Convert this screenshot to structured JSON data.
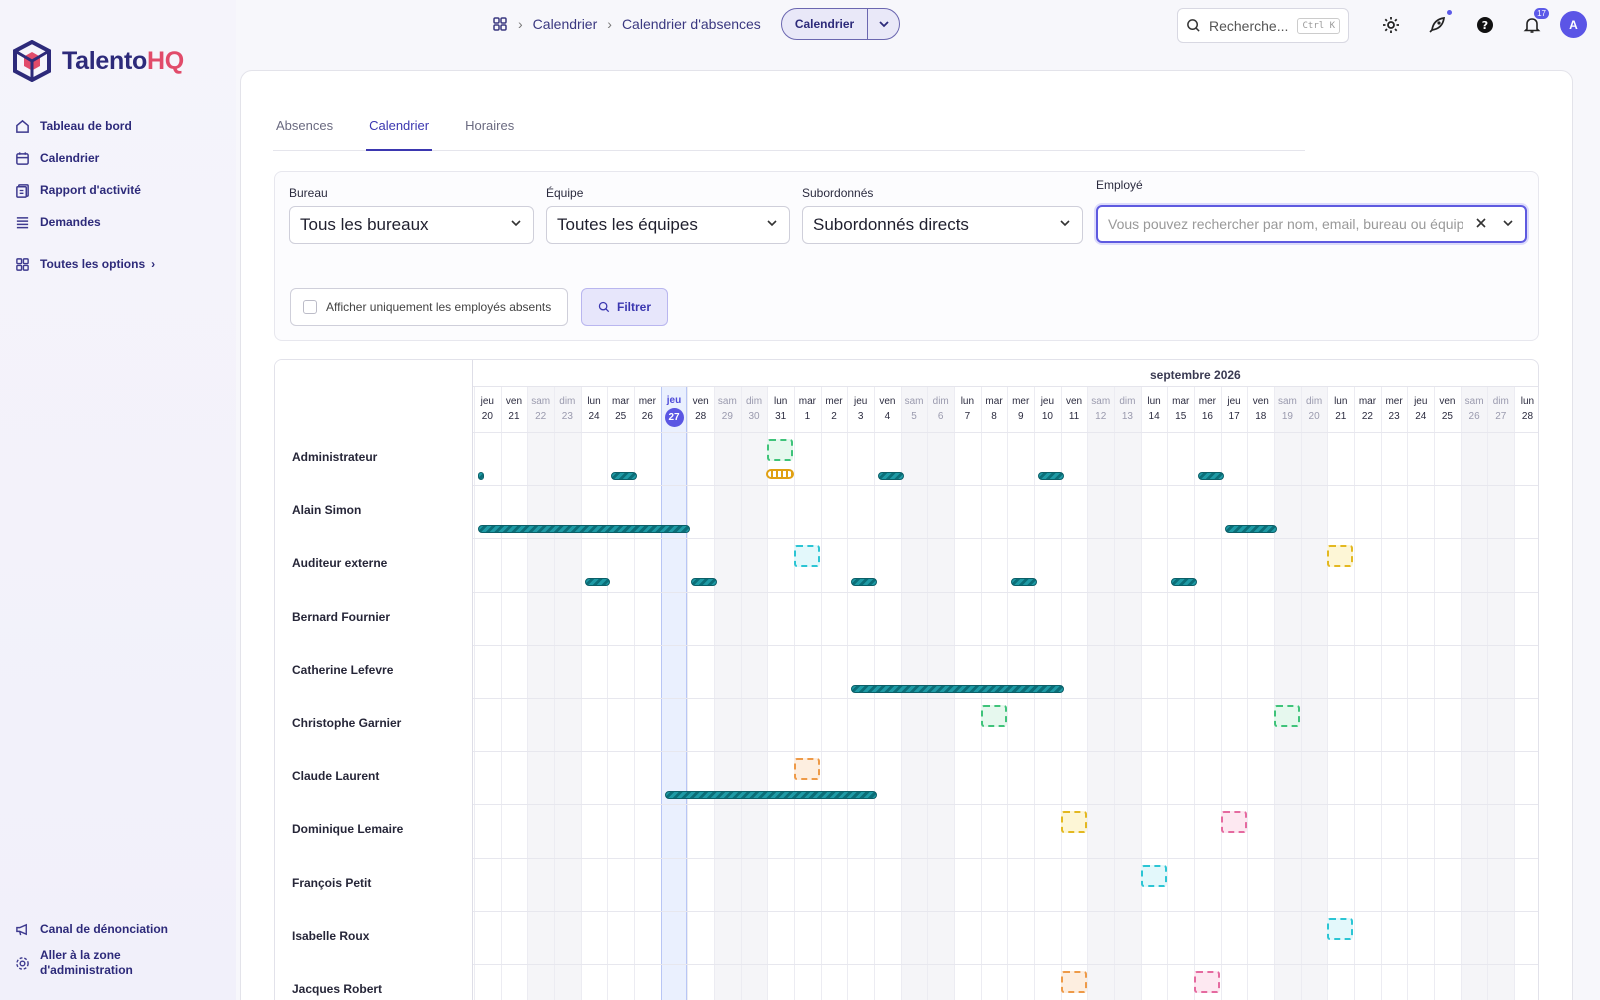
{
  "app": {
    "brand_main": "Talento",
    "brand_accent": "HQ",
    "colors": {
      "accent": "#5a56e3",
      "brand": "#2d2a7a",
      "brand_hq": "#e14b6a"
    }
  },
  "sidebar": {
    "items": [
      {
        "label": "Tableau de bord",
        "icon": "home-icon"
      },
      {
        "label": "Calendrier",
        "icon": "calendar-icon"
      },
      {
        "label": "Rapport d'activité",
        "icon": "report-icon"
      },
      {
        "label": "Demandes",
        "icon": "list-icon"
      }
    ],
    "all_options": "Toutes les options",
    "bottom": [
      {
        "label": "Canal de dénonciation",
        "icon": "megaphone-icon"
      },
      {
        "label": "Aller à la zone d'administration",
        "icon": "settings-cog-icon"
      }
    ]
  },
  "topbar": {
    "breadcrumb": [
      "Calendrier",
      "Calendrier d'absences"
    ],
    "view_button": "Calendrier",
    "search_placeholder": "Recherche...",
    "search_shortcut": "Ctrl K",
    "notifications_count": "17",
    "avatar_initial": "A"
  },
  "tabs": [
    {
      "label": "Absences",
      "active": false
    },
    {
      "label": "Calendrier",
      "active": true
    },
    {
      "label": "Horaires",
      "active": false
    }
  ],
  "filters": {
    "bureau": {
      "label": "Bureau",
      "value": "Tous les bureaux"
    },
    "equipe": {
      "label": "Équipe",
      "value": "Toutes les équipes"
    },
    "subordonnes": {
      "label": "Subordonnés",
      "value": "Subordonnés directs"
    },
    "employe": {
      "label": "Employé",
      "placeholder": "Vous pouvez rechercher par nom, email, bureau ou équipe"
    },
    "checkbox_label": "Afficher uniquement les employés absents",
    "filter_button": "Filtrer"
  },
  "calendar": {
    "month_label": "septembre 2026",
    "today_index": 7,
    "days": [
      {
        "d": "jeu",
        "n": "20",
        "we": false
      },
      {
        "d": "ven",
        "n": "21",
        "we": false
      },
      {
        "d": "sam",
        "n": "22",
        "we": true
      },
      {
        "d": "dim",
        "n": "23",
        "we": true
      },
      {
        "d": "lun",
        "n": "24",
        "we": false
      },
      {
        "d": "mar",
        "n": "25",
        "we": false
      },
      {
        "d": "mer",
        "n": "26",
        "we": false
      },
      {
        "d": "jeu",
        "n": "27",
        "we": false
      },
      {
        "d": "ven",
        "n": "28",
        "we": false
      },
      {
        "d": "sam",
        "n": "29",
        "we": true
      },
      {
        "d": "dim",
        "n": "30",
        "we": true
      },
      {
        "d": "lun",
        "n": "31",
        "we": false
      },
      {
        "d": "mar",
        "n": "1",
        "we": false
      },
      {
        "d": "mer",
        "n": "2",
        "we": false
      },
      {
        "d": "jeu",
        "n": "3",
        "we": false
      },
      {
        "d": "ven",
        "n": "4",
        "we": false
      },
      {
        "d": "sam",
        "n": "5",
        "we": true
      },
      {
        "d": "dim",
        "n": "6",
        "we": true
      },
      {
        "d": "lun",
        "n": "7",
        "we": false
      },
      {
        "d": "mar",
        "n": "8",
        "we": false
      },
      {
        "d": "mer",
        "n": "9",
        "we": false
      },
      {
        "d": "jeu",
        "n": "10",
        "we": false
      },
      {
        "d": "ven",
        "n": "11",
        "we": false
      },
      {
        "d": "sam",
        "n": "12",
        "we": true
      },
      {
        "d": "dim",
        "n": "13",
        "we": true
      },
      {
        "d": "lun",
        "n": "14",
        "we": false
      },
      {
        "d": "mar",
        "n": "15",
        "we": false
      },
      {
        "d": "mer",
        "n": "16",
        "we": false
      },
      {
        "d": "jeu",
        "n": "17",
        "we": false
      },
      {
        "d": "ven",
        "n": "18",
        "we": false
      },
      {
        "d": "sam",
        "n": "19",
        "we": true
      },
      {
        "d": "dim",
        "n": "20",
        "we": true
      },
      {
        "d": "lun",
        "n": "21",
        "we": false
      },
      {
        "d": "mar",
        "n": "22",
        "we": false
      },
      {
        "d": "mer",
        "n": "23",
        "we": false
      },
      {
        "d": "jeu",
        "n": "24",
        "we": false
      },
      {
        "d": "ven",
        "n": "25",
        "we": false
      },
      {
        "d": "sam",
        "n": "26",
        "we": true
      },
      {
        "d": "dim",
        "n": "27",
        "we": true
      },
      {
        "d": "lun",
        "n": "28",
        "we": false
      }
    ],
    "employees": [
      {
        "name": "Administrateur",
        "bars": [
          [
            0,
            0.1
          ],
          [
            5,
            6
          ],
          [
            15,
            16
          ],
          [
            21,
            22
          ],
          [
            27,
            28
          ]
        ],
        "boxes": [
          {
            "day": 11,
            "color": "green"
          }
        ],
        "special": [
          {
            "day": 11
          }
        ]
      },
      {
        "name": "Alain Simon",
        "bars": [
          [
            0,
            8
          ],
          [
            28,
            30
          ]
        ],
        "boxes": []
      },
      {
        "name": "Auditeur externe",
        "bars": [
          [
            4,
            5
          ],
          [
            8,
            9
          ],
          [
            14,
            15
          ],
          [
            20,
            21
          ],
          [
            26,
            27
          ]
        ],
        "boxes": [
          {
            "day": 12,
            "color": "cyan"
          },
          {
            "day": 32,
            "color": "yellow"
          }
        ]
      },
      {
        "name": "Bernard Fournier",
        "bars": [],
        "boxes": []
      },
      {
        "name": "Catherine Lefevre",
        "bars": [
          [
            14,
            22
          ]
        ],
        "boxes": []
      },
      {
        "name": "Christophe Garnier",
        "bars": [],
        "boxes": [
          {
            "day": 19,
            "color": "green"
          },
          {
            "day": 30,
            "color": "green"
          }
        ]
      },
      {
        "name": "Claude Laurent",
        "bars": [
          [
            7,
            15
          ]
        ],
        "boxes": [
          {
            "day": 12,
            "color": "orange"
          }
        ]
      },
      {
        "name": "Dominique Lemaire",
        "bars": [],
        "boxes": [
          {
            "day": 22,
            "color": "yellow"
          },
          {
            "day": 28,
            "color": "pink"
          }
        ]
      },
      {
        "name": "François Petit",
        "bars": [],
        "boxes": [
          {
            "day": 25,
            "color": "cyan"
          }
        ]
      },
      {
        "name": "Isabelle Roux",
        "bars": [],
        "boxes": [
          {
            "day": 32,
            "color": "cyan"
          }
        ]
      },
      {
        "name": "Jacques Robert",
        "bars": [],
        "boxes": [
          {
            "day": 22,
            "color": "orange"
          },
          {
            "day": 27,
            "color": "pink"
          }
        ]
      }
    ]
  }
}
